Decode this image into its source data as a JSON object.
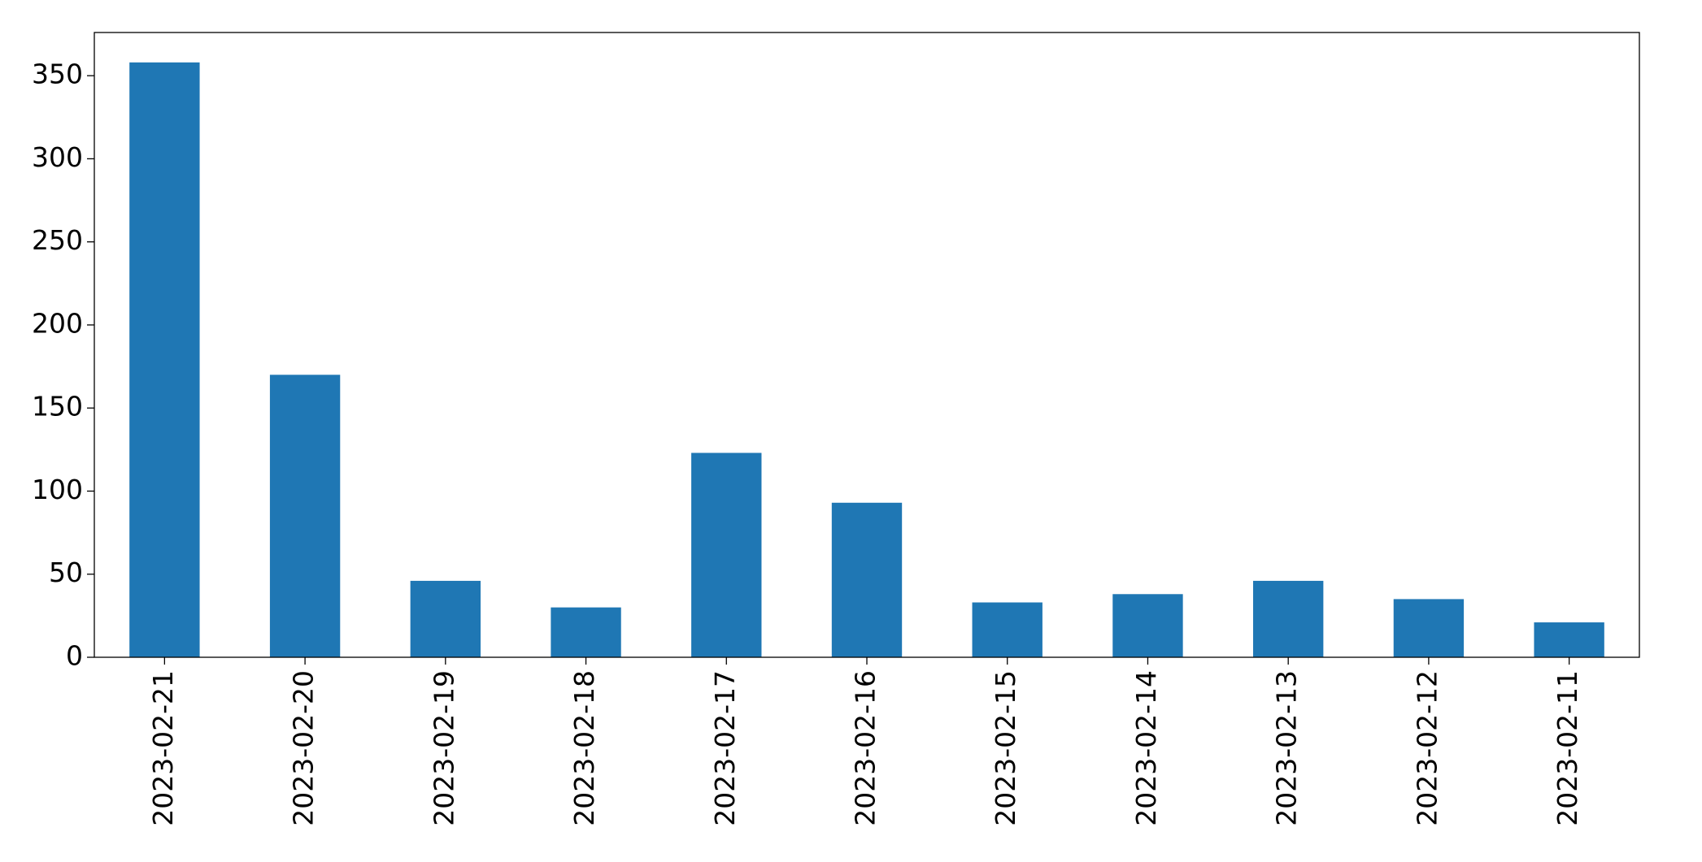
{
  "chart_data": {
    "type": "bar",
    "categories": [
      "2023-02-21",
      "2023-02-20",
      "2023-02-19",
      "2023-02-18",
      "2023-02-17",
      "2023-02-16",
      "2023-02-15",
      "2023-02-14",
      "2023-02-13",
      "2023-02-12",
      "2023-02-11"
    ],
    "values": [
      358,
      170,
      46,
      30,
      123,
      93,
      33,
      38,
      46,
      35,
      21
    ],
    "color": "#1f77b4",
    "ylim": [
      0,
      376
    ],
    "yticks": [
      0,
      50,
      100,
      150,
      200,
      250,
      300,
      350
    ],
    "grid": false
  }
}
